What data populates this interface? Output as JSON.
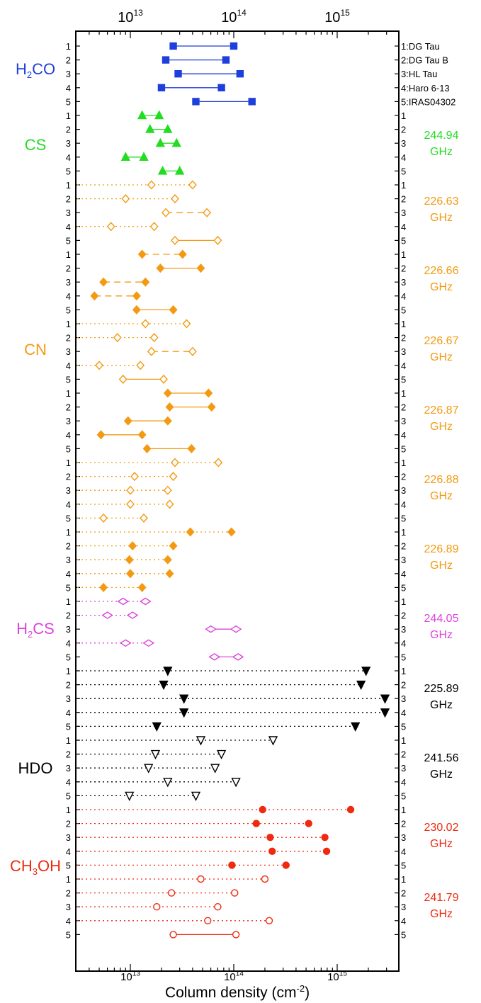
{
  "chart_data": {
    "type": "scatter",
    "xlabel": "Column density (cm",
    "xlabel_sup": "-2",
    "xlabel_close": ")",
    "xscale": "log",
    "xlim_log10": [
      12.5,
      15.7
    ],
    "x_ticks": [
      {
        "base": "10",
        "exp": "13",
        "value": 10000000000000.0
      },
      {
        "base": "10",
        "exp": "14",
        "value": 100000000000000.0
      },
      {
        "base": "10",
        "exp": "15",
        "value": 1000000000000000.0
      }
    ],
    "sources": [
      "1:DG Tau",
      "2:DG Tau B",
      "3:HL Tau",
      "4:Haro 6-13",
      "5:IRAS04302"
    ],
    "molecules": [
      {
        "label_main": "H",
        "label_sub": "2",
        "label_rest": "CO",
        "color": "#1f3fdc",
        "rows": "0-4"
      },
      {
        "label_main": "CS",
        "label_sub": "",
        "label_rest": "",
        "color": "#22dd22",
        "rows": "5-9"
      },
      {
        "label_main": "CN",
        "label_sub": "",
        "label_rest": "",
        "color": "#f39a12",
        "rows": "10-39"
      },
      {
        "label_main": "H",
        "label_sub": "2",
        "label_rest": "CS",
        "color": "#dd44dd",
        "rows": "40-44"
      },
      {
        "label_main": "HDO",
        "label_sub": "",
        "label_rest": "",
        "color": "#000000",
        "rows": "45-54"
      },
      {
        "label_main": "CH",
        "label_sub": "3",
        "label_rest": "OH",
        "color": "#ee2a10",
        "rows": "55-64"
      }
    ],
    "frequency_labels": [
      {
        "line1": "244.94",
        "line2": "GHz",
        "color": "#22dd22"
      },
      {
        "line1": "226.63",
        "line2": "GHz",
        "color": "#f39a12"
      },
      {
        "line1": "226.66",
        "line2": "GHz",
        "color": "#f39a12"
      },
      {
        "line1": "226.67",
        "line2": "GHz",
        "color": "#f39a12"
      },
      {
        "line1": "226.87",
        "line2": "GHz",
        "color": "#f39a12"
      },
      {
        "line1": "226.88",
        "line2": "GHz",
        "color": "#f39a12"
      },
      {
        "line1": "226.89",
        "line2": "GHz",
        "color": "#f39a12"
      },
      {
        "line1": "244.05",
        "line2": "GHz",
        "color": "#dd44dd"
      },
      {
        "line1": "225.89",
        "line2": "GHz",
        "color": "#000000"
      },
      {
        "line1": "241.56",
        "line2": "GHz",
        "color": "#000000"
      },
      {
        "line1": "230.02",
        "line2": "GHz",
        "color": "#ee2a10"
      },
      {
        "line1": "241.79",
        "line2": "GHz",
        "color": "#ee2a10"
      }
    ],
    "series": [
      {
        "group": "H2CO",
        "color": "#1f3fdc",
        "marker": "square",
        "fill": true,
        "points": [
          {
            "source": "1",
            "x1": 26000000000000.0,
            "x2": 100000000000000.0,
            "line": "solid"
          },
          {
            "source": "2",
            "x1": 22000000000000.0,
            "x2": 84000000000000.0,
            "line": "solid"
          },
          {
            "source": "3",
            "x1": 29000000000000.0,
            "x2": 115000000000000.0,
            "line": "solid"
          },
          {
            "source": "4",
            "x1": 20000000000000.0,
            "x2": 76000000000000.0,
            "line": "solid"
          },
          {
            "source": "5",
            "x1": 43000000000000.0,
            "x2": 150000000000000.0,
            "line": "solid"
          }
        ]
      },
      {
        "group": "CS 244.94 GHz",
        "color": "#22dd22",
        "marker": "triangle-up",
        "fill": true,
        "points": [
          {
            "source": "1",
            "x1": 13000000000000.0,
            "x2": 19000000000000.0,
            "line": "solid"
          },
          {
            "source": "2",
            "x1": 15500000000000.0,
            "x2": 23000000000000.0,
            "line": "solid"
          },
          {
            "source": "3",
            "x1": 19500000000000.0,
            "x2": 28000000000000.0,
            "line": "solid"
          },
          {
            "source": "4",
            "x1": 9000000000000.0,
            "x2": 13500000000000.0,
            "line": "solid"
          },
          {
            "source": "5",
            "x1": 20500000000000.0,
            "x2": 30000000000000.0,
            "line": "solid"
          }
        ]
      },
      {
        "group": "CN 226.63 GHz",
        "color": "#f39a12",
        "marker": "diamond",
        "fill": false,
        "points": [
          {
            "source": "1",
            "x1": 16000000000000.0,
            "x2": 40000000000000.0,
            "line": "dotted",
            "arrow_left": true
          },
          {
            "source": "2",
            "x1": 9000000000000.0,
            "x2": 27000000000000.0,
            "line": "dotted",
            "arrow_left": true
          },
          {
            "source": "3",
            "x1": 22000000000000.0,
            "x2": 55000000000000.0,
            "line": "dashed"
          },
          {
            "source": "4",
            "x1": 6500000000000.0,
            "x2": 17000000000000.0,
            "line": "dotted",
            "arrow_left": true
          },
          {
            "source": "5",
            "x1": 27000000000000.0,
            "x2": 70000000000000.0,
            "line": "solid"
          }
        ]
      },
      {
        "group": "CN 226.66 GHz",
        "color": "#f39a12",
        "marker": "diamond",
        "fill": true,
        "points": [
          {
            "source": "1",
            "x1": 13000000000000.0,
            "x2": 32000000000000.0,
            "line": "dashed"
          },
          {
            "source": "2",
            "x1": 19500000000000.0,
            "x2": 48000000000000.0,
            "line": "solid"
          },
          {
            "source": "3",
            "x1": 5500000000000.0,
            "x2": 14000000000000.0,
            "line": "dashed"
          },
          {
            "source": "4",
            "x1": 4500000000000.0,
            "x2": 11500000000000.0,
            "line": "dashed"
          },
          {
            "source": "5",
            "x1": 11500000000000.0,
            "x2": 26000000000000.0,
            "line": "solid"
          }
        ]
      },
      {
        "group": "CN 226.67 GHz",
        "color": "#f39a12",
        "marker": "diamond",
        "fill": false,
        "points": [
          {
            "source": "1",
            "x1": 14000000000000.0,
            "x2": 35000000000000.0,
            "line": "dotted",
            "arrow_left": true
          },
          {
            "source": "2",
            "x1": 7500000000000.0,
            "x2": 17000000000000.0,
            "line": "dotted",
            "arrow_left": true
          },
          {
            "source": "3",
            "x1": 16000000000000.0,
            "x2": 40000000000000.0,
            "line": "dashed"
          },
          {
            "source": "4",
            "x1": 5000000000000.0,
            "x2": 12500000000000.0,
            "line": "dotted",
            "arrow_left": true
          },
          {
            "source": "5",
            "x1": 8500000000000.0,
            "x2": 21000000000000.0,
            "line": "solid"
          }
        ]
      },
      {
        "group": "CN 226.87 GHz",
        "color": "#f39a12",
        "marker": "diamond",
        "fill": true,
        "points": [
          {
            "source": "1",
            "x1": 23000000000000.0,
            "x2": 57000000000000.0,
            "line": "solid"
          },
          {
            "source": "2",
            "x1": 24000000000000.0,
            "x2": 61000000000000.0,
            "line": "solid"
          },
          {
            "source": "3",
            "x1": 9500000000000.0,
            "x2": 23000000000000.0,
            "line": "solid"
          },
          {
            "source": "4",
            "x1": 5200000000000.0,
            "x2": 13000000000000.0,
            "line": "solid"
          },
          {
            "source": "5",
            "x1": 14500000000000.0,
            "x2": 39000000000000.0,
            "line": "solid"
          }
        ]
      },
      {
        "group": "CN 226.88 GHz",
        "color": "#f39a12",
        "marker": "diamond",
        "fill": false,
        "points": [
          {
            "source": "1",
            "x1": 27000000000000.0,
            "x2": 71000000000000.0,
            "line": "dotted",
            "arrow_left": true
          },
          {
            "source": "2",
            "x1": 11000000000000.0,
            "x2": 26000000000000.0,
            "line": "dotted",
            "arrow_left": true
          },
          {
            "source": "3",
            "x1": 10000000000000.0,
            "x2": 23000000000000.0,
            "line": "dotted",
            "arrow_left": true
          },
          {
            "source": "4",
            "x1": 10000000000000.0,
            "x2": 24000000000000.0,
            "line": "dotted",
            "arrow_left": true
          },
          {
            "source": "5",
            "x1": 5500000000000.0,
            "x2": 13500000000000.0,
            "line": "dotted",
            "arrow_left": true
          }
        ]
      },
      {
        "group": "CN 226.89 GHz",
        "color": "#f39a12",
        "marker": "diamond",
        "fill": true,
        "points": [
          {
            "source": "1",
            "x1": 38000000000000.0,
            "x2": 95000000000000.0,
            "line": "dotted",
            "arrow_left": true
          },
          {
            "source": "2",
            "x1": 10500000000000.0,
            "x2": 26000000000000.0,
            "line": "dotted",
            "arrow_left": true
          },
          {
            "source": "3",
            "x1": 9800000000000.0,
            "x2": 23000000000000.0,
            "line": "dotted",
            "arrow_left": true
          },
          {
            "source": "4",
            "x1": 10000000000000.0,
            "x2": 24000000000000.0,
            "line": "dotted",
            "arrow_left": true
          },
          {
            "source": "5",
            "x1": 5500000000000.0,
            "x2": 13000000000000.0,
            "line": "dotted",
            "arrow_left": true
          }
        ]
      },
      {
        "group": "H2CS 244.05 GHz",
        "color": "#dd44dd",
        "marker": "diamond-wide",
        "fill": false,
        "points": [
          {
            "source": "1",
            "x1": 8500000000000.0,
            "x2": 14000000000000.0,
            "line": "dotted",
            "arrow_left": true
          },
          {
            "source": "2",
            "x1": 6000000000000.0,
            "x2": 10500000000000.0,
            "line": "dotted",
            "arrow_left": true
          },
          {
            "source": "3",
            "x1": 60000000000000.0,
            "x2": 105000000000000.0,
            "line": "solid"
          },
          {
            "source": "4",
            "x1": 9000000000000.0,
            "x2": 15000000000000.0,
            "line": "dotted",
            "arrow_left": true
          },
          {
            "source": "5",
            "x1": 65000000000000.0,
            "x2": 110000000000000.0,
            "line": "solid"
          }
        ]
      },
      {
        "group": "HDO 225.89 GHz",
        "color": "#000000",
        "marker": "triangle-down",
        "fill": true,
        "points": [
          {
            "source": "1",
            "x1": 23000000000000.0,
            "x2": 1900000000000000.0,
            "line": "dotted",
            "arrow_left": true
          },
          {
            "source": "2",
            "x1": 21000000000000.0,
            "x2": 1700000000000000.0,
            "line": "dotted",
            "arrow_left": true
          },
          {
            "source": "3",
            "x1": 33000000000000.0,
            "x2": 2900000000000000.0,
            "line": "dotted",
            "arrow_left": true
          },
          {
            "source": "4",
            "x1": 33000000000000.0,
            "x2": 2900000000000000.0,
            "line": "dotted",
            "arrow_left": true
          },
          {
            "source": "5",
            "x1": 18000000000000.0,
            "x2": 1500000000000000.0,
            "line": "dotted",
            "arrow_left": true
          }
        ]
      },
      {
        "group": "HDO 241.56 GHz",
        "color": "#000000",
        "marker": "triangle-down",
        "fill": false,
        "points": [
          {
            "source": "1",
            "x1": 48000000000000.0,
            "x2": 240000000000000.0,
            "line": "dotted",
            "arrow_left": true
          },
          {
            "source": "2",
            "x1": 17500000000000.0,
            "x2": 76000000000000.0,
            "line": "dotted",
            "arrow_left": true
          },
          {
            "source": "3",
            "x1": 15000000000000.0,
            "x2": 66000000000000.0,
            "line": "dotted",
            "arrow_left": true
          },
          {
            "source": "4",
            "x1": 23000000000000.0,
            "x2": 105000000000000.0,
            "line": "dotted",
            "arrow_left": true
          },
          {
            "source": "5",
            "x1": 9800000000000.0,
            "x2": 43000000000000.0,
            "line": "dotted",
            "arrow_left": true
          }
        ]
      },
      {
        "group": "CH3OH 230.02 GHz",
        "color": "#ee2a10",
        "marker": "circle",
        "fill": true,
        "points": [
          {
            "source": "1",
            "x1": 190000000000000.0,
            "x2": 1350000000000000.0,
            "line": "dotted",
            "arrow_left": true
          },
          {
            "source": "2",
            "x1": 165000000000000.0,
            "x2": 530000000000000.0,
            "line": "dotted",
            "arrow_left": true
          },
          {
            "source": "3",
            "x1": 225000000000000.0,
            "x2": 760000000000000.0,
            "line": "dotted",
            "arrow_left": true
          },
          {
            "source": "4",
            "x1": 235000000000000.0,
            "x2": 790000000000000.0,
            "line": "dotted",
            "arrow_left": true
          },
          {
            "source": "5",
            "x1": 96000000000000.0,
            "x2": 320000000000000.0,
            "line": "dotted",
            "arrow_left": true
          }
        ]
      },
      {
        "group": "CH3OH 241.79 GHz",
        "color": "#ee2a10",
        "marker": "circle",
        "fill": false,
        "points": [
          {
            "source": "1",
            "x1": 48000000000000.0,
            "x2": 200000000000000.0,
            "line": "dotted",
            "arrow_left": true
          },
          {
            "source": "2",
            "x1": 25000000000000.0,
            "x2": 102000000000000.0,
            "line": "dotted",
            "arrow_left": true
          },
          {
            "source": "3",
            "x1": 18000000000000.0,
            "x2": 70000000000000.0,
            "line": "dotted",
            "arrow_left": true
          },
          {
            "source": "4",
            "x1": 56000000000000.0,
            "x2": 220000000000000.0,
            "line": "dotted",
            "arrow_left": true
          },
          {
            "source": "5",
            "x1": 26000000000000.0,
            "x2": 105000000000000.0,
            "line": "solid"
          }
        ]
      }
    ]
  }
}
